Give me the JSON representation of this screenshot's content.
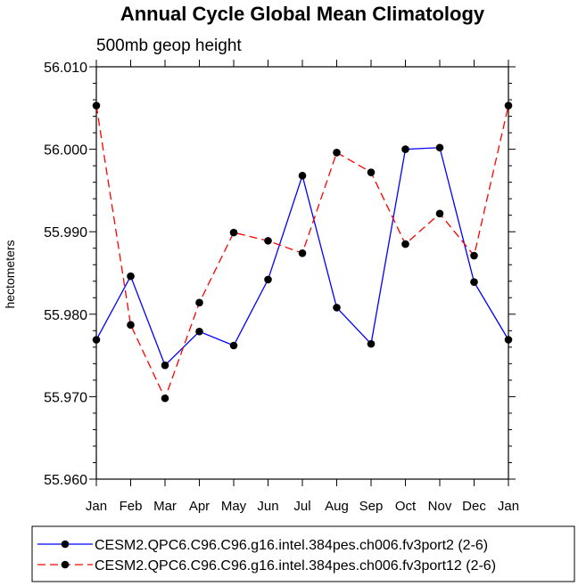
{
  "chart_data": {
    "type": "line",
    "title": "Annual Cycle Global Mean Climatology",
    "subtitle": "500mb geop height",
    "ylabel": "hectometers",
    "xlabel": "",
    "categories": [
      "Jan",
      "Feb",
      "Mar",
      "Apr",
      "May",
      "Jun",
      "Jul",
      "Aug",
      "Sep",
      "Oct",
      "Nov",
      "Dec",
      "Jan"
    ],
    "ylim": [
      55.96,
      56.01
    ],
    "yticks": [
      "55.960",
      "55.970",
      "55.980",
      "55.990",
      "56.000",
      "56.010"
    ],
    "grid": false,
    "legend_position": "bottom",
    "series": [
      {
        "name": "CESM2.QPC6.C96.C96.g16.intel.384pes.ch006.fv3port2 (2-6)",
        "color": "#0000ff",
        "dash": "solid",
        "marker": "filled-circle",
        "values": [
          55.9769,
          55.9846,
          55.9738,
          55.9779,
          55.9762,
          55.9842,
          55.9968,
          55.9808,
          55.9764,
          56.0,
          56.0002,
          55.9839,
          55.9769
        ]
      },
      {
        "name": "CESM2.QPC6.C96.C96.g16.intel.384pes.ch006.fv3port12 (2-6)",
        "color": "#ff0000",
        "dash": "dashed",
        "marker": "filled-circle",
        "values": [
          56.0053,
          55.9787,
          55.9698,
          55.9814,
          55.9899,
          55.9889,
          55.9874,
          55.9996,
          55.9972,
          55.9885,
          55.9922,
          55.9871,
          56.0053
        ]
      }
    ]
  }
}
